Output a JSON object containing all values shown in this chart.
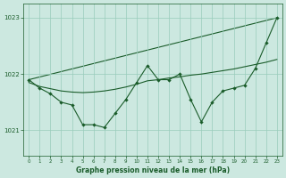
{
  "background_color": "#cce8e0",
  "grid_color": "#99ccbb",
  "line_color": "#1a5c2a",
  "title": "Graphe pression niveau de la mer (hPa)",
  "ylim": [
    1020.55,
    1023.25
  ],
  "xlim": [
    -0.5,
    23.5
  ],
  "yticks": [
    1021,
    1022,
    1023
  ],
  "xticks": [
    0,
    1,
    2,
    3,
    4,
    5,
    6,
    7,
    8,
    9,
    10,
    11,
    12,
    13,
    14,
    15,
    16,
    17,
    18,
    19,
    20,
    21,
    22,
    23
  ],
  "zigzag": {
    "x": [
      0,
      1,
      2,
      3,
      4,
      5,
      6,
      7,
      8,
      9,
      10,
      11,
      12,
      13,
      14,
      15,
      16,
      17,
      18,
      19,
      20,
      21,
      22,
      23
    ],
    "y": [
      1021.9,
      1021.75,
      1021.65,
      1021.5,
      1021.45,
      1021.1,
      1021.1,
      1021.05,
      1021.3,
      1021.55,
      1021.85,
      1022.15,
      1021.9,
      1021.9,
      1022.0,
      1021.55,
      1021.15,
      1021.5,
      1021.7,
      1021.75,
      1021.8,
      1022.1,
      1022.55,
      1023.0
    ]
  },
  "flat_line": {
    "x": [
      0,
      1,
      2,
      3,
      4,
      5,
      6,
      7,
      8,
      9,
      10,
      11,
      12,
      13,
      14,
      15,
      16,
      17,
      18,
      19,
      20,
      21,
      22,
      23
    ],
    "y": [
      1021.85,
      1021.78,
      1021.74,
      1021.7,
      1021.68,
      1021.67,
      1021.68,
      1021.7,
      1021.73,
      1021.77,
      1021.82,
      1021.88,
      1021.9,
      1021.93,
      1021.95,
      1021.98,
      1022.0,
      1022.03,
      1022.06,
      1022.09,
      1022.13,
      1022.17,
      1022.21,
      1022.26
    ]
  },
  "trend_line": {
    "x": [
      0,
      23
    ],
    "y": [
      1021.9,
      1023.0
    ]
  }
}
